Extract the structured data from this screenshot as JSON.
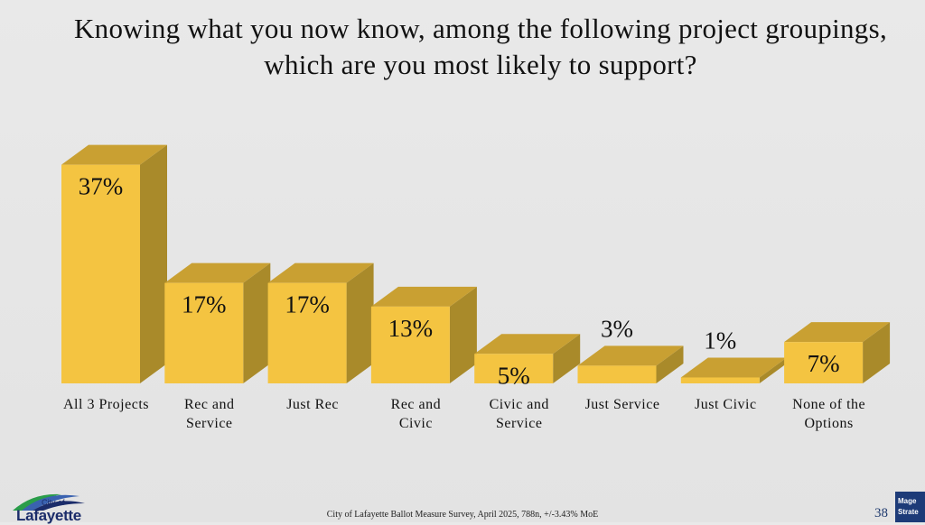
{
  "title": {
    "line1": "Knowing what you now know, among the following project groupings,",
    "line2": "which are you most likely to support?"
  },
  "chart_data": {
    "type": "bar",
    "title": "Knowing what you now know, among the following project groupings, which are you most likely to support?",
    "categories": [
      [
        "All 3 Projects"
      ],
      [
        "Rec and",
        "Service"
      ],
      [
        "Just Rec"
      ],
      [
        "Rec and",
        "Civic"
      ],
      [
        "Civic and",
        "Service"
      ],
      [
        "Just Service"
      ],
      [
        "Just Civic"
      ],
      [
        "None of the",
        "Options"
      ]
    ],
    "values": [
      37,
      17,
      17,
      13,
      5,
      3,
      1,
      7
    ],
    "data_labels": [
      "37%",
      "17%",
      "17%",
      "13%",
      "5%",
      "3%",
      "1%",
      "7%"
    ],
    "ylim": [
      0,
      40
    ],
    "xlabel": "",
    "ylabel": "",
    "colors": {
      "front": "#F4C441",
      "top": "#C9A032",
      "side": "#A98A2A"
    }
  },
  "footer": {
    "source": "City of Lafayette Ballot Measure Survey, April 2025, 788n, +/-3.43% MoE",
    "page_number": "38"
  },
  "logo": {
    "small": "City of",
    "big": "Lafayette"
  },
  "corner_badge": {
    "line1": "Mage",
    "line2": "Strate"
  }
}
